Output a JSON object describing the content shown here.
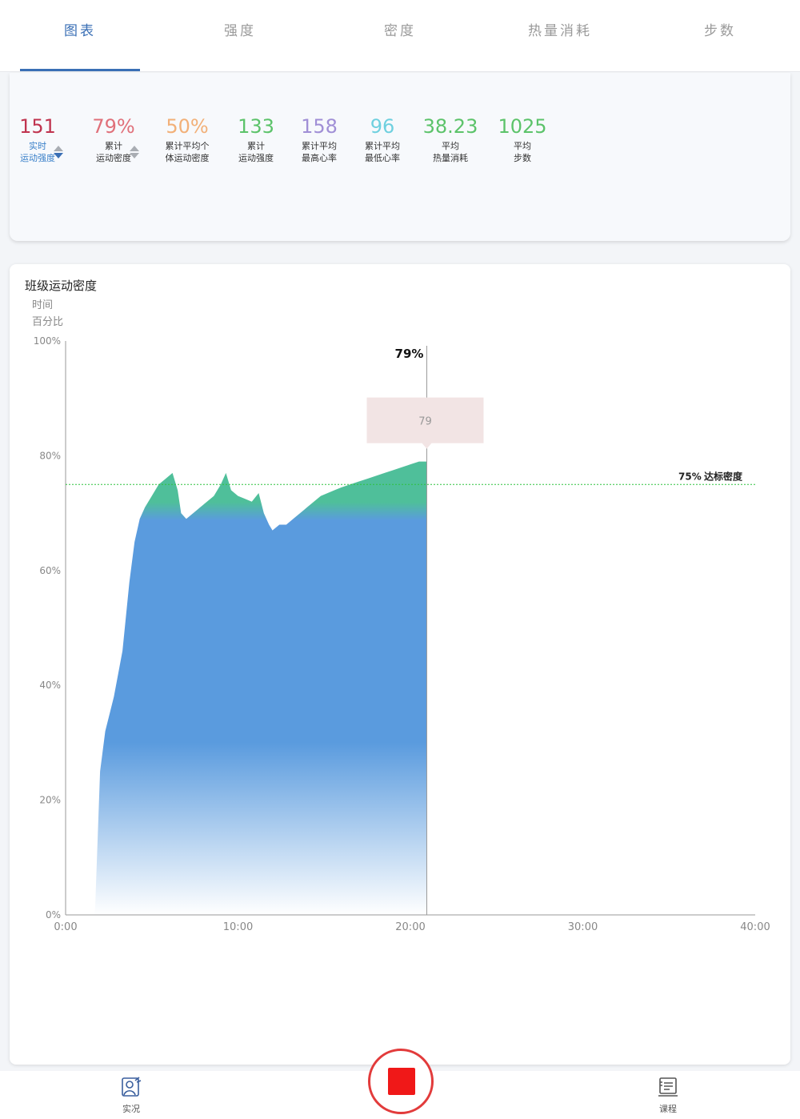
{
  "tabs": [
    {
      "label": "图表",
      "active": true
    },
    {
      "label": "强度",
      "active": false
    },
    {
      "label": "密度",
      "active": false
    },
    {
      "label": "热量消耗",
      "active": false
    },
    {
      "label": "步数",
      "active": false
    }
  ],
  "stats": [
    {
      "value": "151",
      "label1": "实时",
      "label2": "运动强度",
      "color": "#c0344f",
      "label_color": "#3a80c9"
    },
    {
      "value": "79%",
      "label1": "累计",
      "label2": "运动密度",
      "color": "#e0707a",
      "label_color": "#333333"
    },
    {
      "value": "50%",
      "label1": "累计平均个",
      "label2": "体运动密度",
      "color": "#f2b078",
      "label_color": "#333333"
    },
    {
      "value": "133",
      "label1": "累计",
      "label2": "运动强度",
      "color": "#5cc36a",
      "label_color": "#333333"
    },
    {
      "value": "158",
      "label1": "累计平均",
      "label2": "最高心率",
      "color": "#a08fd6",
      "label_color": "#333333"
    },
    {
      "value": "96",
      "label1": "累计平均",
      "label2": "最低心率",
      "color": "#6fd0df",
      "label_color": "#333333"
    },
    {
      "value": "38.23",
      "label1": "平均",
      "label2": "热量消耗",
      "color": "#5cc36a",
      "label_color": "#333333"
    },
    {
      "value": "1025",
      "label1": "平均",
      "label2": "步数",
      "color": "#5cc36a",
      "label_color": "#333333"
    }
  ],
  "chart_card": {
    "title": "班级运动密度",
    "subtitle_time": "时间",
    "subtitle_percent": "百分比"
  },
  "chart_data": {
    "type": "area",
    "title": "班级运动密度",
    "xlabel": "时间",
    "ylabel": "百分比",
    "x_tick_labels": [
      "0:00",
      "10:00",
      "20:00",
      "30:00",
      "40:00"
    ],
    "y_tick_labels": [
      "0%",
      "20%",
      "40%",
      "60%",
      "80%",
      "100%"
    ],
    "xlim": [
      0,
      40
    ],
    "ylim": [
      0,
      100
    ],
    "grid": false,
    "series": [
      {
        "x": [
          1.7,
          2.0,
          2.3,
          2.8,
          3.3,
          3.7,
          4.0,
          4.3,
          4.6,
          5.0,
          5.4,
          5.8,
          6.2,
          6.5,
          6.7,
          7.0,
          7.4,
          7.8,
          8.2,
          8.6,
          9.0,
          9.3,
          9.6,
          10.0,
          10.4,
          10.8,
          11.2,
          11.5,
          11.8,
          12.0,
          12.4,
          12.8,
          13.2,
          13.6,
          14.0,
          14.4,
          14.8,
          15.2,
          15.6,
          16.0,
          16.5,
          17.0,
          17.5,
          18.0,
          18.5,
          19.0,
          19.5,
          20.0,
          20.5,
          20.95
        ],
        "y": [
          0,
          25,
          32,
          38,
          46,
          58,
          65,
          69,
          71,
          73,
          75,
          76,
          77,
          74,
          70,
          69,
          70,
          71,
          72,
          73,
          75,
          77,
          74,
          73,
          72.5,
          72,
          73.5,
          70,
          68,
          67,
          68,
          68,
          69,
          70,
          71,
          72,
          73,
          73.5,
          74,
          74.5,
          75,
          75.5,
          76,
          76.5,
          77,
          77.5,
          78,
          78.5,
          79,
          79
        ]
      }
    ],
    "reference_line": {
      "value": 75,
      "label_value": "75%",
      "label_text": "达标密度",
      "color": "#2ec23e"
    },
    "cursor": {
      "x": 20.95,
      "label": "79%",
      "tooltip": "79"
    },
    "gradient_colors": {
      "top": "#4fbf9a",
      "main": "#5a9bde",
      "bottom": "#ffffff"
    }
  },
  "bottom_nav": {
    "left_label": "实况",
    "right_label": "课程"
  },
  "colors": {
    "accent": "#3a6fb5",
    "stop": "#f01818"
  }
}
